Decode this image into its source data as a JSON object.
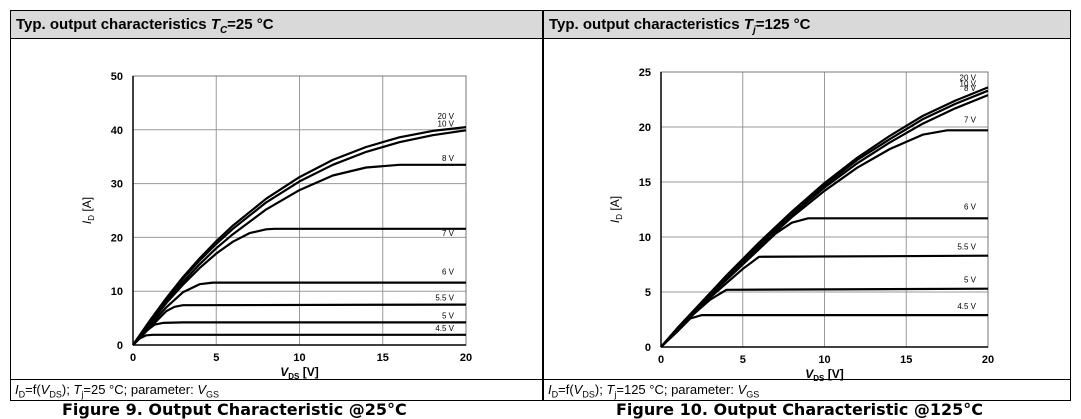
{
  "left": {
    "title": {
      "prefix": "Typ. output characteristics ",
      "sym": "T",
      "sub": "C",
      "suffix": "=25 °C"
    },
    "footer": {
      "p1": "I",
      "p1sub": "D",
      "p2": "=f(",
      "p3": "V",
      "p3sub": "DS",
      "p4": ");  ",
      "p5": "T",
      "p5sub": "j",
      "p6": "=25 °C;  parameter:  ",
      "p7": "V",
      "p7sub": "GS"
    },
    "caption": "Figure 9. Output Characteristic @25°C"
  },
  "right": {
    "title": {
      "prefix": "Typ. output characteristics ",
      "sym": "T",
      "sub": "j",
      "suffix": "=125 °C"
    },
    "footer": {
      "p1": "I",
      "p1sub": "D",
      "p2": "=f(",
      "p3": "V",
      "p3sub": "DS",
      "p4": ");  ",
      "p5": "T",
      "p5sub": "j",
      "p6": "=125 °C;  parameter:  ",
      "p7": "V",
      "p7sub": "GS"
    },
    "caption": "Figure 10. Output Characteristic @125°C"
  },
  "chart_data": [
    {
      "type": "line",
      "title": "Typ. output characteristics TC=25 °C",
      "xlabel": "VDS [V]",
      "ylabel": "ID [A]",
      "xlim": [
        0,
        20
      ],
      "ylim": [
        0,
        50
      ],
      "xticks": [
        0,
        5,
        10,
        15,
        20
      ],
      "yticks": [
        0,
        10,
        20,
        30,
        40,
        50
      ],
      "grid": true,
      "series": [
        {
          "name": "20 V",
          "x": [
            0,
            1,
            2,
            3,
            4,
            5,
            6,
            8,
            10,
            12,
            14,
            16,
            18,
            20
          ],
          "y": [
            0,
            4.5,
            8.7,
            12.6,
            16.1,
            19.3,
            22.2,
            27.2,
            31.2,
            34.4,
            36.8,
            38.6,
            39.8,
            40.5
          ]
        },
        {
          "name": "10 V",
          "x": [
            0,
            1,
            2,
            3,
            4,
            5,
            6,
            8,
            10,
            12,
            14,
            16,
            18,
            20
          ],
          "y": [
            0,
            4.4,
            8.5,
            12.3,
            15.7,
            18.8,
            21.6,
            26.5,
            30.4,
            33.5,
            35.9,
            37.7,
            39.0,
            39.9
          ]
        },
        {
          "name": "8 V",
          "x": [
            0,
            1,
            2,
            3,
            4,
            5,
            6,
            8,
            10,
            12,
            14,
            16,
            17,
            20
          ],
          "y": [
            0,
            4.2,
            8.1,
            11.7,
            15.0,
            18.0,
            20.6,
            25.2,
            28.8,
            31.5,
            33.0,
            33.5,
            33.5,
            33.5
          ]
        },
        {
          "name": "7 V",
          "x": [
            0,
            1,
            2,
            3,
            4,
            5,
            6,
            7,
            8,
            8.5,
            10,
            20
          ],
          "y": [
            0,
            4.0,
            7.8,
            11.2,
            14.3,
            17.0,
            19.2,
            20.8,
            21.5,
            21.6,
            21.6,
            21.6
          ]
        },
        {
          "name": "6 V",
          "x": [
            0,
            1,
            2,
            3,
            4,
            4.8,
            6,
            20
          ],
          "y": [
            0,
            3.6,
            7.0,
            9.8,
            11.3,
            11.6,
            11.6,
            11.6
          ]
        },
        {
          "name": "5.5 V",
          "x": [
            0,
            1,
            2,
            2.5,
            3,
            20
          ],
          "y": [
            0,
            3.2,
            6.3,
            7.1,
            7.4,
            7.5
          ]
        },
        {
          "name": "5 V",
          "x": [
            0,
            0.7,
            1.3,
            1.8,
            3,
            20
          ],
          "y": [
            0,
            2.4,
            3.8,
            4.1,
            4.2,
            4.2
          ]
        },
        {
          "name": "4.5 V",
          "x": [
            0,
            0.4,
            0.8,
            1.2,
            20
          ],
          "y": [
            0,
            1.2,
            1.8,
            1.9,
            1.9
          ]
        }
      ]
    },
    {
      "type": "line",
      "title": "Typ. output characteristics Tj=125 °C",
      "xlabel": "VDS [V]",
      "ylabel": "ID [A]",
      "xlim": [
        0,
        20
      ],
      "ylim": [
        0,
        25
      ],
      "xticks": [
        0,
        5,
        10,
        15,
        20
      ],
      "yticks": [
        0,
        5,
        10,
        15,
        20,
        25
      ],
      "grid": true,
      "series": [
        {
          "name": "20 V",
          "x": [
            0,
            1,
            2,
            3,
            4,
            5,
            6,
            8,
            10,
            12,
            14,
            16,
            18,
            20
          ],
          "y": [
            0,
            1.7,
            3.3,
            4.9,
            6.5,
            8.0,
            9.5,
            12.3,
            14.9,
            17.2,
            19.2,
            21.0,
            22.4,
            23.6
          ]
        },
        {
          "name": "10 V",
          "x": [
            0,
            1,
            2,
            3,
            4,
            5,
            6,
            8,
            10,
            12,
            14,
            16,
            18,
            20
          ],
          "y": [
            0,
            1.7,
            3.3,
            4.9,
            6.4,
            7.9,
            9.4,
            12.1,
            14.7,
            17.0,
            18.9,
            20.7,
            22.1,
            23.3
          ]
        },
        {
          "name": "8 V",
          "x": [
            0,
            1,
            2,
            3,
            4,
            5,
            6,
            8,
            10,
            12,
            14,
            16,
            18,
            20
          ],
          "y": [
            0,
            1.7,
            3.3,
            4.8,
            6.3,
            7.8,
            9.3,
            12.0,
            14.5,
            16.7,
            18.6,
            20.3,
            21.7,
            22.9
          ]
        },
        {
          "name": "7 V",
          "x": [
            0,
            1,
            2,
            3,
            4,
            5,
            6,
            8,
            10,
            12,
            14,
            16,
            17.5,
            20
          ],
          "y": [
            0,
            1.6,
            3.2,
            4.8,
            6.2,
            7.7,
            9.1,
            11.8,
            14.2,
            16.3,
            18.0,
            19.3,
            19.7,
            19.7
          ]
        },
        {
          "name": "6 V",
          "x": [
            0,
            1,
            2,
            3,
            4,
            5,
            6,
            7,
            8,
            9,
            20
          ],
          "y": [
            0,
            1.6,
            3.2,
            4.7,
            6.1,
            7.5,
            8.9,
            10.3,
            11.3,
            11.7,
            11.7
          ]
        },
        {
          "name": "5.5 V",
          "x": [
            0,
            1,
            2,
            3,
            4,
            5,
            6,
            20
          ],
          "y": [
            0,
            1.6,
            3.1,
            4.5,
            5.8,
            7.1,
            8.2,
            8.3
          ]
        },
        {
          "name": "5 V",
          "x": [
            0,
            1,
            2,
            3,
            4,
            20
          ],
          "y": [
            0,
            1.5,
            3.0,
            4.3,
            5.2,
            5.3
          ]
        },
        {
          "name": "4.5 V",
          "x": [
            0,
            1,
            1.8,
            2.5,
            20
          ],
          "y": [
            0,
            1.4,
            2.6,
            2.9,
            2.9
          ]
        }
      ]
    }
  ]
}
